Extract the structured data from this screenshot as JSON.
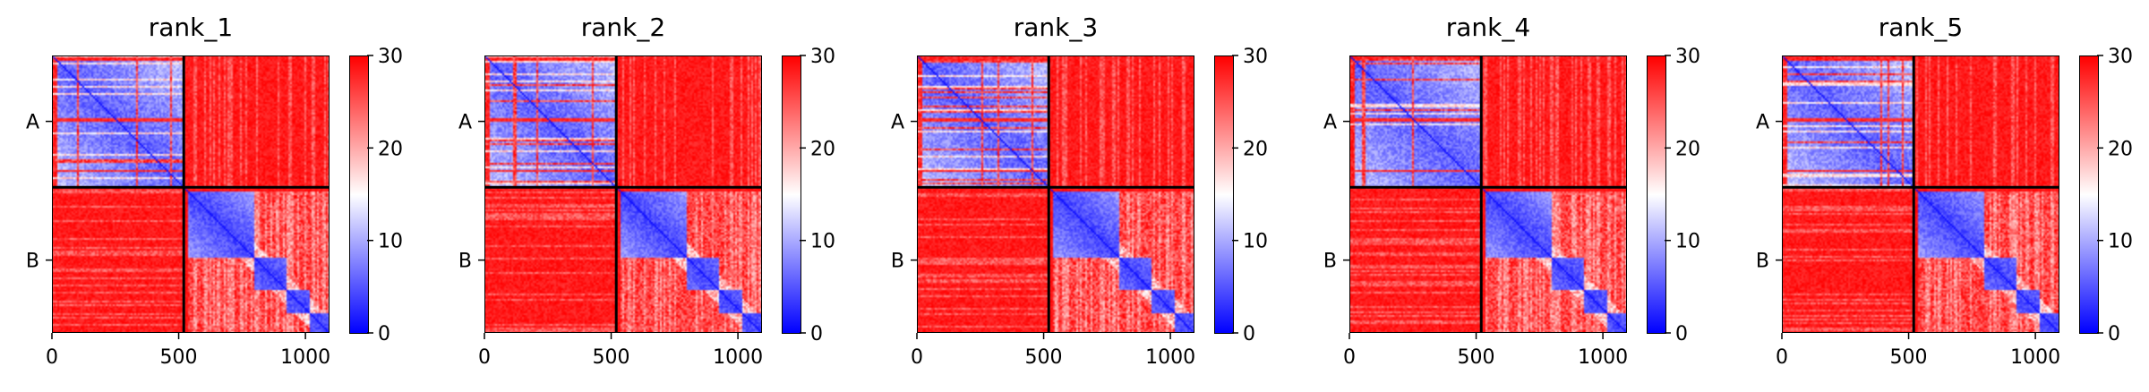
{
  "chart_data": [
    {
      "type": "heatmap",
      "title": "rank_1",
      "chains": [
        {
          "label": "A",
          "length": 520
        },
        {
          "label": "B",
          "length": 575
        }
      ],
      "xticks": [
        "0",
        "500",
        "1000"
      ],
      "colorbar": {
        "ticks": [
          "0",
          "10",
          "20",
          "30"
        ],
        "range": [
          0,
          30
        ],
        "colors": [
          "#0000ff",
          "#ffffff",
          "#ff0000"
        ]
      }
    },
    {
      "type": "heatmap",
      "title": "rank_2",
      "chains": [
        {
          "label": "A",
          "length": 520
        },
        {
          "label": "B",
          "length": 575
        }
      ],
      "xticks": [
        "0",
        "500",
        "1000"
      ],
      "colorbar": {
        "ticks": [
          "0",
          "10",
          "20",
          "30"
        ],
        "range": [
          0,
          30
        ],
        "colors": [
          "#0000ff",
          "#ffffff",
          "#ff0000"
        ]
      }
    },
    {
      "type": "heatmap",
      "title": "rank_3",
      "chains": [
        {
          "label": "A",
          "length": 520
        },
        {
          "label": "B",
          "length": 575
        }
      ],
      "xticks": [
        "0",
        "500",
        "1000"
      ],
      "colorbar": {
        "ticks": [
          "0",
          "10",
          "20",
          "30"
        ],
        "range": [
          0,
          30
        ],
        "colors": [
          "#0000ff",
          "#ffffff",
          "#ff0000"
        ]
      }
    },
    {
      "type": "heatmap",
      "title": "rank_4",
      "chains": [
        {
          "label": "A",
          "length": 520
        },
        {
          "label": "B",
          "length": 575
        }
      ],
      "xticks": [
        "0",
        "500",
        "1000"
      ],
      "colorbar": {
        "ticks": [
          "0",
          "10",
          "20",
          "30"
        ],
        "range": [
          0,
          30
        ],
        "colors": [
          "#0000ff",
          "#ffffff",
          "#ff0000"
        ]
      }
    },
    {
      "type": "heatmap",
      "title": "rank_5",
      "chains": [
        {
          "label": "A",
          "length": 520
        },
        {
          "label": "B",
          "length": 575
        }
      ],
      "xticks": [
        "0",
        "500",
        "1000"
      ],
      "colorbar": {
        "ticks": [
          "0",
          "10",
          "20",
          "30"
        ],
        "range": [
          0,
          30
        ],
        "colors": [
          "#0000ff",
          "#ffffff",
          "#ff0000"
        ]
      }
    }
  ]
}
